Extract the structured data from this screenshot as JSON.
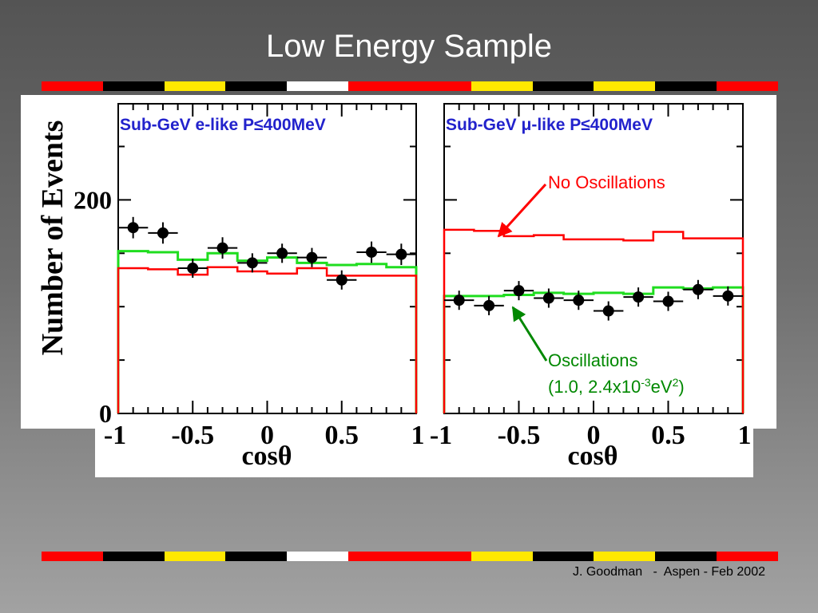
{
  "slide": {
    "title": "Low Energy Sample",
    "footer": "J. Goodman   -  Aspen - Feb 2002",
    "band_colors": [
      "#ff0000",
      "#000000",
      "#ffe800",
      "#000000",
      "#ffffff",
      "#ff0000",
      "#ff0000",
      "#ffe800",
      "#000000",
      "#ffe800",
      "#000000",
      "#ff0000"
    ]
  },
  "colors": {
    "no_osc": "#ff0000",
    "osc": "#1fdd1f",
    "data": "#000000",
    "panel_title": "#2222cc",
    "no_osc_label": "#ff0000",
    "osc_label": "#008800"
  },
  "chart_data": [
    {
      "type": "line",
      "title": "Sub-GeV e-like P≤400MeV",
      "xlabel": "cosθ",
      "ylabel": "Number of Events",
      "xlim": [
        -1,
        1
      ],
      "ylim": [
        0,
        290
      ],
      "x_ticks": [
        "-1",
        "-0.5",
        "0",
        "0.5",
        "1"
      ],
      "y_ticks": [
        "0",
        "200"
      ],
      "x": [
        -0.9,
        -0.7,
        -0.5,
        -0.3,
        -0.1,
        0.1,
        0.3,
        0.5,
        0.7,
        0.9
      ],
      "series": [
        {
          "values": [
            174,
            169,
            136,
            155,
            141,
            150,
            146,
            125,
            151,
            149
          ],
          "errors": [
            10,
            10,
            9,
            10,
            9,
            9,
            9,
            9,
            10,
            10
          ]
        },
        {
          "values": [
            152,
            151,
            144,
            150,
            143,
            146,
            141,
            139,
            140,
            137
          ]
        },
        {
          "values": [
            136,
            135,
            130,
            137,
            133,
            131,
            136,
            129,
            129,
            129
          ]
        }
      ]
    },
    {
      "type": "line",
      "title": "Sub-GeV μ-like P≤400MeV",
      "xlabel": "cosθ",
      "xlim": [
        -1,
        1
      ],
      "ylim": [
        0,
        290
      ],
      "x_ticks": [
        "-1",
        "-0.5",
        "0",
        "0.5",
        "1"
      ],
      "x": [
        -0.9,
        -0.7,
        -0.5,
        -0.3,
        -0.1,
        0.1,
        0.3,
        0.5,
        0.7,
        0.9
      ],
      "series": [
        {
          "values": [
            106,
            101,
            115,
            108,
            106,
            96,
            109,
            105,
            116,
            110
          ],
          "errors": [
            9,
            9,
            9,
            9,
            9,
            9,
            9,
            9,
            9,
            9
          ]
        },
        {
          "values": [
            110,
            110,
            111,
            113,
            112,
            113,
            112,
            118,
            117,
            118
          ]
        },
        {
          "values": [
            172,
            171,
            166,
            167,
            163,
            163,
            162,
            170,
            164,
            164
          ]
        }
      ],
      "annotations": {
        "no_osc": "No Oscillations",
        "osc": "Oscillations",
        "osc_params_prefix": "(1.0,  2.4x10",
        "osc_params_exp": "-3",
        "osc_params_unit": "eV",
        "osc_params_unit_exp": "2",
        "osc_params_suffix": ")"
      }
    }
  ]
}
